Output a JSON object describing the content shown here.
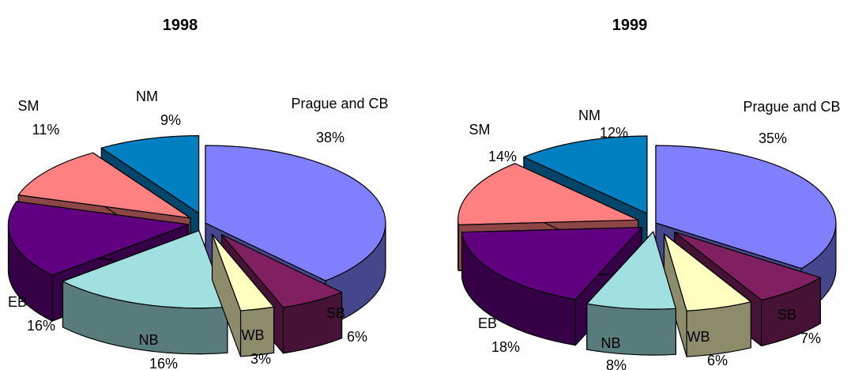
{
  "chart_data": [
    {
      "type": "pie",
      "title": "1998",
      "categories": [
        "Prague and CB",
        "SB",
        "WB",
        "NB",
        "EB",
        "SM",
        "NM"
      ],
      "values": [
        38,
        6,
        3,
        16,
        16,
        11,
        9
      ],
      "value_labels": [
        "38%",
        "6%",
        "3%",
        "16%",
        "16%",
        "11%",
        "9%"
      ],
      "colors": [
        "#8080FF",
        "#802060",
        "#FFFFC0",
        "#A0E0E0",
        "#600080",
        "#FF8080",
        "#0080C0"
      ],
      "exploded": true,
      "style": "3d"
    },
    {
      "type": "pie",
      "title": "1999",
      "categories": [
        "Prague and CB",
        "SB",
        "WB",
        "NB",
        "EB",
        "SM",
        "NM"
      ],
      "values": [
        35,
        7,
        6,
        8,
        18,
        14,
        12
      ],
      "value_labels": [
        "35%",
        "7%",
        "6%",
        "8%",
        "18%",
        "14%",
        "12%"
      ],
      "colors": [
        "#8080FF",
        "#802060",
        "#FFFFC0",
        "#A0E0E0",
        "#600080",
        "#FF8080",
        "#0080C0"
      ],
      "exploded": true,
      "style": "3d"
    }
  ]
}
